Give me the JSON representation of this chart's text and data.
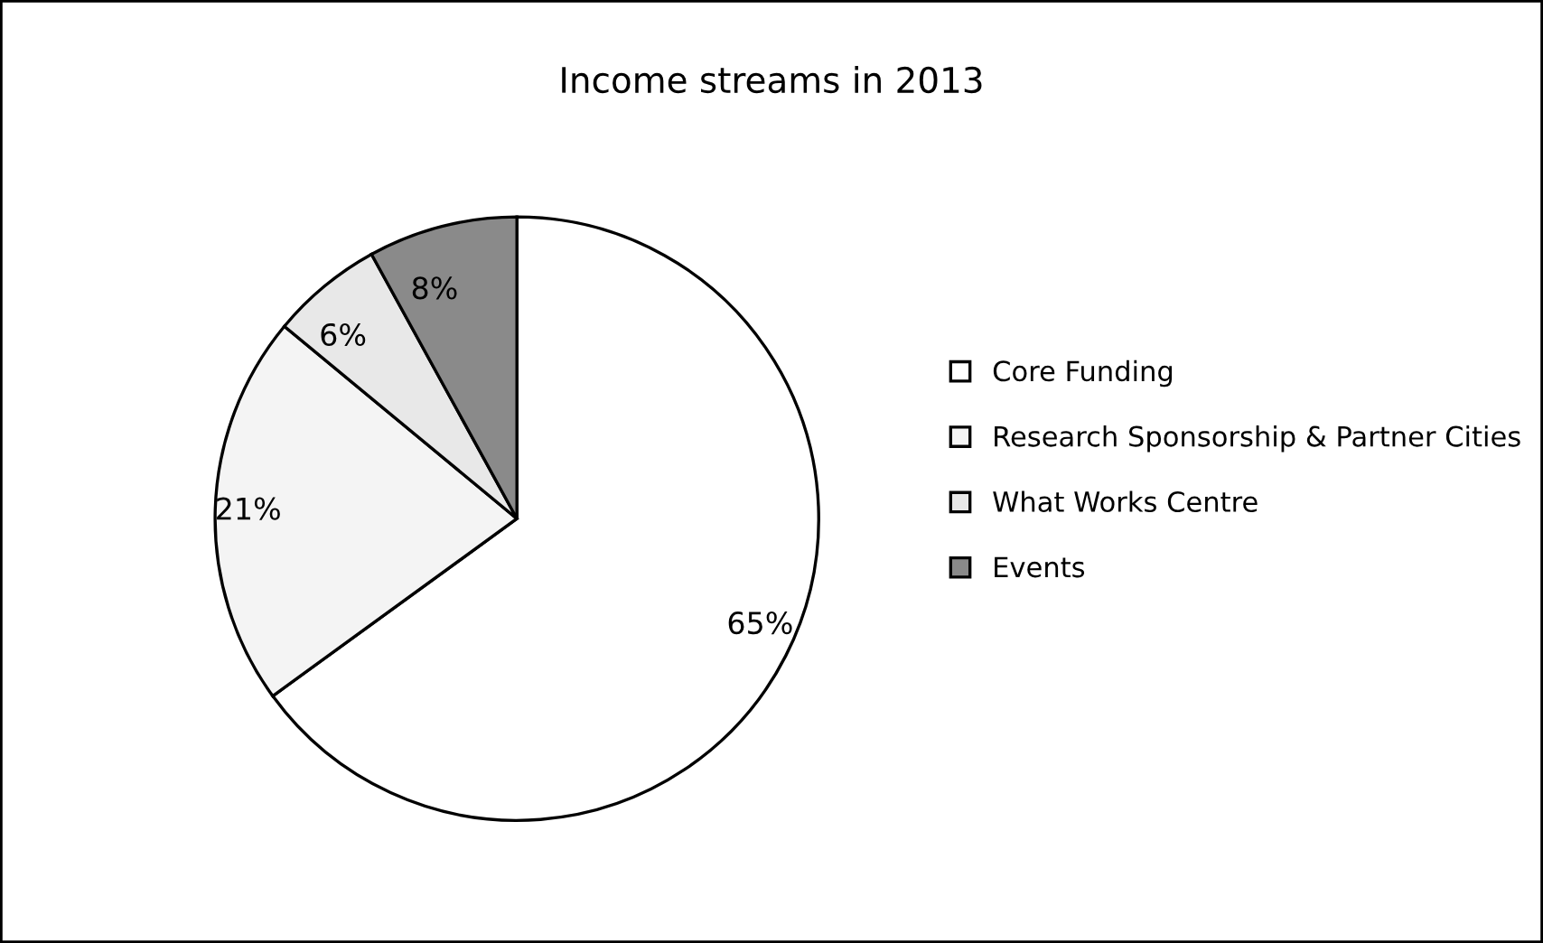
{
  "chart_data": {
    "type": "pie",
    "title": "Income streams in 2013",
    "categories": [
      "Core Funding",
      "Research Sponsorship & Partner Cities",
      "What Works Centre",
      "Events"
    ],
    "values": [
      65,
      21,
      6,
      8
    ],
    "colors": [
      "#ffffff",
      "#f4f4f4",
      "#e8e8e8",
      "#8a8a8a"
    ],
    "value_labels": [
      "65%",
      "21%",
      "6%",
      "8%"
    ],
    "legend": "right"
  }
}
